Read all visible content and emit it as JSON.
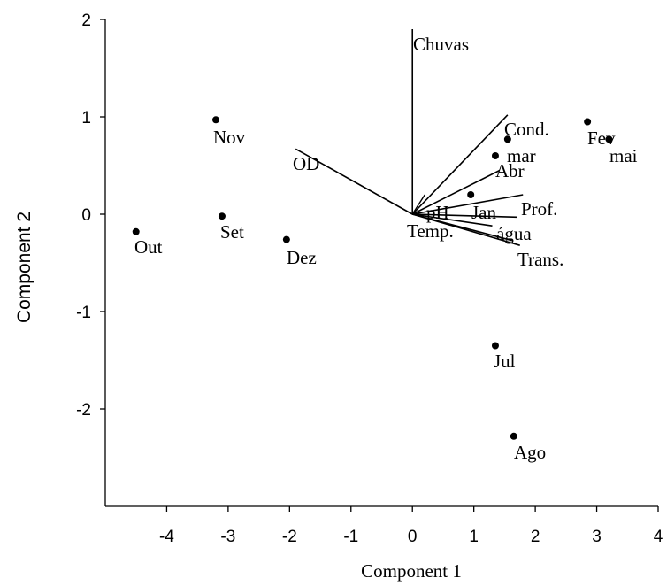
{
  "chart_data": {
    "type": "scatter",
    "title": "",
    "xlabel": "Component 1",
    "ylabel": "Component 2",
    "xlim": [
      -5,
      4
    ],
    "ylim": [
      -3,
      2
    ],
    "xticks": [
      -4,
      -3,
      -2,
      -1,
      0,
      1,
      2,
      3,
      4
    ],
    "yticks": [
      -2,
      -1,
      0,
      1,
      2
    ],
    "x_tick_labels": [
      "-4",
      "-3",
      "-2",
      "-1",
      "0",
      "1",
      "2",
      "3",
      "4"
    ],
    "y_tick_labels": [
      "-2",
      "-1",
      "0",
      "1",
      "2"
    ],
    "grid": false,
    "points": [
      {
        "label": "Nov",
        "x": -3.2,
        "y": 0.97
      },
      {
        "label": "Set",
        "x": -3.1,
        "y": -0.02
      },
      {
        "label": "Out",
        "x": -4.5,
        "y": -0.18
      },
      {
        "label": "Dez",
        "x": -2.05,
        "y": -0.26
      },
      {
        "label": "Cond.",
        "x": 1.55,
        "y": 0.77
      },
      {
        "label": "mar",
        "x": 1.35,
        "y": 0.6
      },
      {
        "label": "Fev",
        "x": 2.85,
        "y": 0.95
      },
      {
        "label": "mai",
        "x": 3.2,
        "y": 0.77
      },
      {
        "label": "Jan",
        "x": 0.95,
        "y": 0.2
      },
      {
        "label": "Jul",
        "x": 1.35,
        "y": -1.35
      },
      {
        "label": "Ago",
        "x": 1.65,
        "y": -2.28
      }
    ],
    "vectors": [
      {
        "label": "Chuvas",
        "x": 0.0,
        "y": 1.9
      },
      {
        "label": "Cond.",
        "x": 1.55,
        "y": 1.02
      },
      {
        "label": "OD",
        "x": -1.9,
        "y": 0.67
      },
      {
        "label": "Abr",
        "x": 1.42,
        "y": 0.45
      },
      {
        "label": "Prof.",
        "x": 1.8,
        "y": 0.2
      },
      {
        "label": "pH",
        "x": 1.7,
        "y": -0.03
      },
      {
        "label": "Temp.",
        "x": 1.3,
        "y": -0.12
      },
      {
        "label": "água",
        "x": 1.62,
        "y": -0.27
      },
      {
        "label": "Trans.",
        "x": 1.75,
        "y": -0.32
      }
    ]
  }
}
